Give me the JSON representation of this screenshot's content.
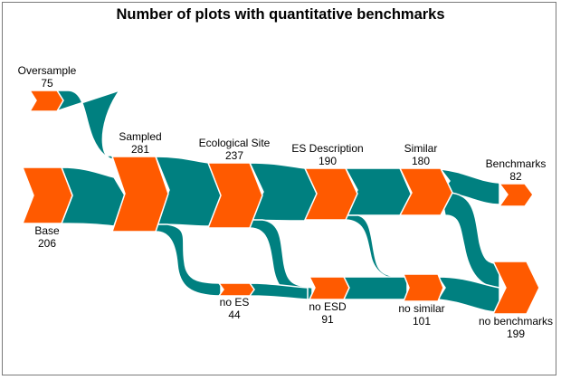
{
  "title": "Number of plots with quantitative benchmarks",
  "colors": {
    "node": "#ff5a00",
    "link": "#008080",
    "border": "#7a7a7a"
  },
  "nodes": {
    "oversample": {
      "label": "Oversample",
      "value": "75"
    },
    "base": {
      "label": "Base",
      "value": "206"
    },
    "sampled": {
      "label": "Sampled",
      "value": "281"
    },
    "eco_site": {
      "label": "Ecological Site",
      "value": "237"
    },
    "no_es": {
      "label": "no ES",
      "value": "44"
    },
    "es_desc": {
      "label": "ES Description",
      "value": "190"
    },
    "no_esd": {
      "label": "no ESD",
      "value": "91"
    },
    "similar": {
      "label": "Similar",
      "value": "180"
    },
    "no_similar": {
      "label": "no similar",
      "value": "101"
    },
    "benchmarks": {
      "label": "Benchmarks",
      "value": "82"
    },
    "no_benchmarks": {
      "label": "no benchmarks",
      "value": "199"
    }
  }
}
